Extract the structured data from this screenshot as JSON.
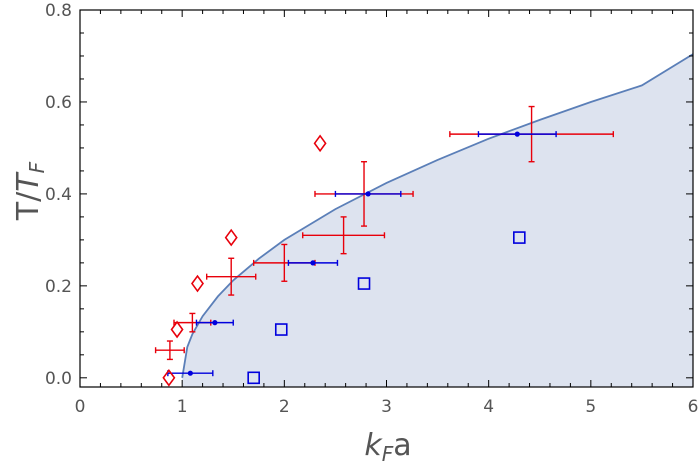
{
  "chart_data": {
    "type": "scatter",
    "title": "",
    "xlabel": {
      "main": "k",
      "sub": "F",
      "rest": "a"
    },
    "ylabel": {
      "main": "T/",
      "italic": "T",
      "sub": "F"
    },
    "xlim": [
      0,
      6
    ],
    "ylim": [
      -0.02,
      0.8
    ],
    "x_ticks": [
      "0",
      "1",
      "2",
      "3",
      "4",
      "5",
      "6"
    ],
    "y_ticks": [
      "0.0",
      "0.2",
      "0.4",
      "0.6",
      "0.8"
    ],
    "grid": false,
    "legend": "none",
    "colors": {
      "curve": "#5b7fb8",
      "fill": "#dde3ef",
      "red": "#e8000b",
      "blue": "#0000dd",
      "axis": "#000000"
    },
    "curve": {
      "name": "",
      "x": [
        1.0,
        1.05,
        1.1,
        1.2,
        1.35,
        1.5,
        1.75,
        2.0,
        2.5,
        3.0,
        3.5,
        4.0,
        4.5,
        5.0,
        5.5,
        6.0
      ],
      "y": [
        0.0,
        0.067,
        0.095,
        0.134,
        0.177,
        0.212,
        0.259,
        0.3,
        0.367,
        0.424,
        0.474,
        0.52,
        0.561,
        0.6,
        0.636,
        0.704
      ]
    },
    "red_errorbars": [
      {
        "x": 0.88,
        "y": 0.06,
        "xerr": [
          0.14,
          0.14
        ],
        "yerr": [
          0.02,
          0.02
        ]
      },
      {
        "x": 1.1,
        "y": 0.12,
        "xerr": [
          0.18,
          0.18
        ],
        "yerr": [
          0.02,
          0.02
        ]
      },
      {
        "x": 1.48,
        "y": 0.22,
        "xerr": [
          0.24,
          0.24
        ],
        "yerr": [
          0.04,
          0.04
        ]
      },
      {
        "x": 2.0,
        "y": 0.25,
        "xerr": [
          0.3,
          0.3
        ],
        "yerr": [
          0.04,
          0.04
        ]
      },
      {
        "x": 2.58,
        "y": 0.31,
        "xerr": [
          0.4,
          0.4
        ],
        "yerr": [
          0.04,
          0.04
        ]
      },
      {
        "x": 2.78,
        "y": 0.4,
        "xerr": [
          0.48,
          0.48
        ],
        "yerr": [
          0.07,
          0.07
        ]
      },
      {
        "x": 4.42,
        "y": 0.53,
        "xerr": [
          0.8,
          0.8
        ],
        "yerr": [
          0.06,
          0.06
        ]
      }
    ],
    "blue_errorbars": [
      {
        "x": 1.08,
        "y": 0.01,
        "xerr": [
          0.22,
          0.22
        ]
      },
      {
        "x": 1.32,
        "y": 0.12,
        "xerr": [
          0.18,
          0.18
        ]
      },
      {
        "x": 2.28,
        "y": 0.25,
        "xerr": [
          0.24,
          0.24
        ]
      },
      {
        "x": 2.82,
        "y": 0.4,
        "xerr": [
          0.32,
          0.32
        ]
      },
      {
        "x": 4.28,
        "y": 0.53,
        "xerr": [
          0.38,
          0.38
        ]
      }
    ],
    "red_diamonds": {
      "x": [
        0.87,
        0.95,
        1.15,
        1.48,
        2.35
      ],
      "y": [
        0.0,
        0.105,
        0.205,
        0.305,
        0.51
      ]
    },
    "blue_squares": {
      "x": [
        1.7,
        1.97,
        2.78,
        4.3
      ],
      "y": [
        0.0,
        0.105,
        0.205,
        0.305
      ]
    }
  }
}
